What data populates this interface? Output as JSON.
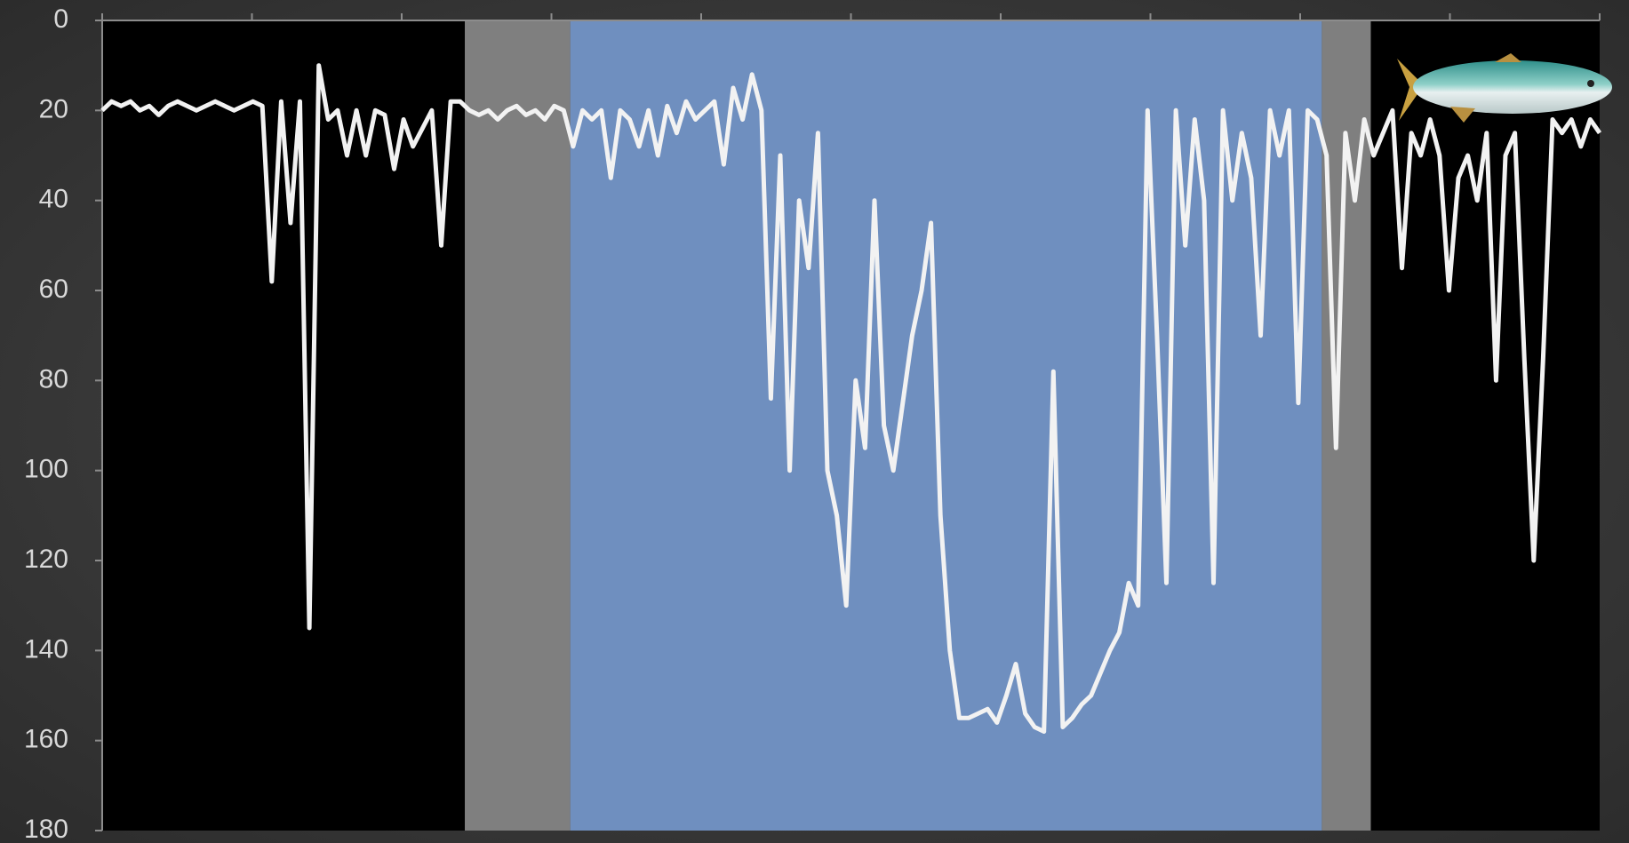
{
  "chart_data": {
    "type": "line",
    "values": [
      20,
      18,
      19,
      18,
      20,
      19,
      21,
      19,
      18,
      19,
      20,
      19,
      18,
      19,
      20,
      19,
      18,
      19,
      58,
      18,
      45,
      18,
      135,
      10,
      22,
      20,
      30,
      20,
      30,
      20,
      21,
      33,
      22,
      28,
      24,
      20,
      50,
      18,
      18,
      20,
      21,
      20,
      22,
      20,
      19,
      21,
      20,
      22,
      19,
      20,
      28,
      20,
      22,
      20,
      35,
      20,
      22,
      28,
      20,
      30,
      19,
      25,
      18,
      22,
      20,
      18,
      32,
      15,
      22,
      12,
      20,
      84,
      30,
      100,
      40,
      55,
      25,
      100,
      110,
      130,
      80,
      95,
      40,
      90,
      100,
      85,
      70,
      60,
      45,
      110,
      140,
      155,
      155,
      154,
      153,
      156,
      150,
      143,
      154,
      157,
      158,
      78,
      157,
      155,
      152,
      150,
      145,
      140,
      136,
      125,
      130,
      20,
      70,
      125,
      20,
      50,
      22,
      40,
      125,
      20,
      40,
      25,
      35,
      70,
      20,
      30,
      20,
      85,
      20,
      22,
      30,
      95,
      25,
      40,
      22,
      30,
      25,
      20,
      55,
      25,
      30,
      22,
      30,
      60,
      35,
      30,
      40,
      25,
      80,
      30,
      25,
      75,
      120,
      75,
      22,
      25,
      22,
      28,
      22,
      25
    ],
    "color": "#f2f2f2",
    "xlim": [
      0,
      159
    ],
    "ylim": [
      180,
      0
    ],
    "yticks": [
      0,
      20,
      40,
      60,
      80,
      100,
      120,
      140,
      160,
      180
    ],
    "bands": [
      {
        "from": 0,
        "to": 38.5,
        "color": "#000000"
      },
      {
        "from": 38.5,
        "to": 49.7,
        "color": "#7f7f7f"
      },
      {
        "from": 49.7,
        "to": 129.5,
        "color": "#6f8fbf"
      },
      {
        "from": 129.5,
        "to": 134.7,
        "color": "#7f7f7f"
      },
      {
        "from": 134.7,
        "to": 159,
        "color": "#000000"
      }
    ]
  }
}
